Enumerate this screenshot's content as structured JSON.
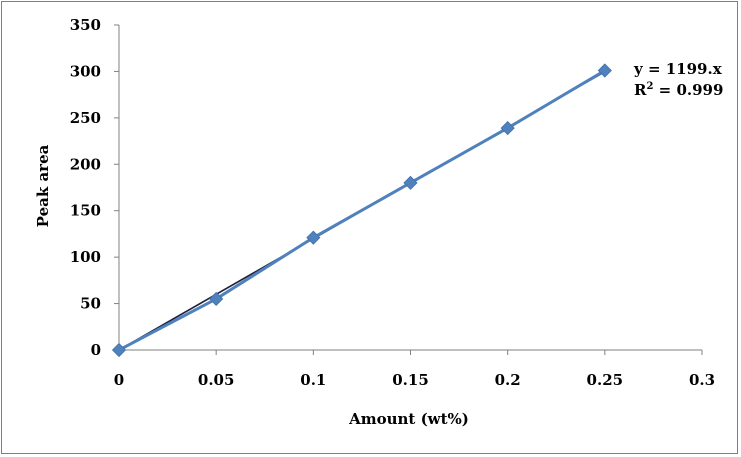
{
  "chart_data": {
    "type": "scatter",
    "title": "",
    "xlabel": "Amount (wt%)",
    "ylabel": "Peak area",
    "xlim": [
      0,
      0.3
    ],
    "ylim": [
      0,
      350
    ],
    "x_ticks": [
      0,
      0.05,
      0.1,
      0.15,
      0.2,
      0.25,
      0.3
    ],
    "x_tick_labels": [
      "0",
      "0.05",
      "0.1",
      "0.15",
      "0.2",
      "0.25",
      "0.3"
    ],
    "y_ticks": [
      0,
      50,
      100,
      150,
      200,
      250,
      300,
      350
    ],
    "y_tick_labels": [
      "0",
      "50",
      "100",
      "150",
      "200",
      "250",
      "300",
      "350"
    ],
    "grid": false,
    "legend": "none",
    "series": [
      {
        "x": [
          0,
          0.05,
          0.1,
          0.15,
          0.2,
          0.25
        ],
        "y": [
          0,
          55,
          121,
          180,
          239,
          301
        ],
        "marker": "diamond",
        "color": "#4f81bd",
        "line_color": "#4f81bd"
      }
    ],
    "trendline": {
      "slope": 1199,
      "x_range": [
        0,
        0.25
      ],
      "color": "#1f1f3a"
    },
    "annotations": {
      "equation": "y = 1199.x",
      "r_squared_prefix": "R",
      "r_squared_superscript": "2",
      "r_squared_suffix": " = 0.999"
    }
  }
}
